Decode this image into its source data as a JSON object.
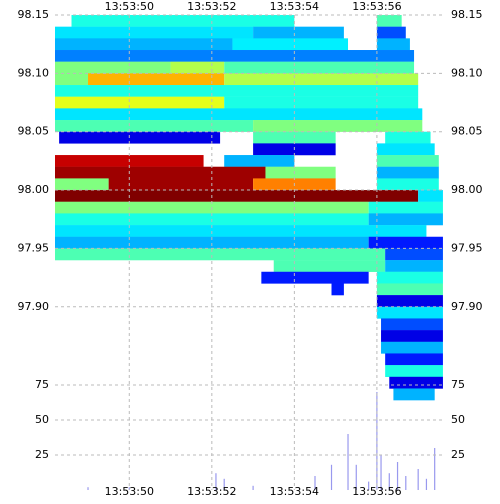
{
  "chart_data": {
    "type": "heatmap",
    "xlim": [
      48.2,
      57.65
    ],
    "xticks": [
      {
        "value": 50,
        "label": "13:53:50"
      },
      {
        "value": 52,
        "label": "13:53:52"
      },
      {
        "value": 54,
        "label": "13:53:54"
      },
      {
        "value": 56,
        "label": "13:53:56"
      }
    ],
    "ylim": [
      97.743,
      98.15
    ],
    "yticks": [
      98.15,
      {
        "value": 98.1,
        "label": "98.10"
      },
      98.05,
      {
        "value": 98,
        "label": "98.00"
      },
      97.95,
      {
        "value": 97.9,
        "label": "97.90"
      }
    ],
    "grid": true,
    "cells": [
      [
        48.6,
        54.0,
        98.15,
        0.4
      ],
      [
        56.0,
        56.6,
        98.15,
        0.45
      ],
      [
        48.2,
        53.0,
        98.14,
        0.35
      ],
      [
        53.0,
        55.2,
        98.14,
        0.3
      ],
      [
        56.0,
        56.7,
        98.14,
        0.2
      ],
      [
        48.2,
        52.5,
        98.13,
        0.3
      ],
      [
        52.5,
        55.3,
        98.13,
        0.36
      ],
      [
        56.0,
        56.8,
        98.13,
        0.3
      ],
      [
        48.2,
        56.9,
        98.12,
        0.25
      ],
      [
        48.2,
        51.0,
        98.11,
        0.5
      ],
      [
        51.0,
        52.3,
        98.11,
        0.55
      ],
      [
        52.3,
        56.9,
        98.11,
        0.45
      ],
      [
        48.2,
        49.0,
        98.1,
        0.5
      ],
      [
        49.0,
        52.3,
        98.1,
        0.7
      ],
      [
        52.3,
        57.0,
        98.1,
        0.55
      ],
      [
        48.2,
        57.0,
        98.09,
        0.4
      ],
      [
        48.2,
        52.3,
        98.08,
        0.6
      ],
      [
        52.3,
        57.0,
        98.08,
        0.4
      ],
      [
        48.2,
        57.1,
        98.07,
        0.35
      ],
      [
        48.2,
        53.0,
        98.06,
        0.45
      ],
      [
        53.0,
        57.1,
        98.06,
        0.5
      ],
      [
        48.3,
        52.2,
        98.05,
        0.1
      ],
      [
        53.0,
        55.0,
        98.05,
        0.45
      ],
      [
        56.2,
        57.3,
        98.05,
        0.4
      ],
      [
        53.0,
        55.0,
        98.04,
        0.1
      ],
      [
        56.0,
        57.4,
        98.04,
        0.35
      ],
      [
        48.2,
        51.8,
        98.03,
        0.93
      ],
      [
        52.3,
        54.0,
        98.03,
        0.3
      ],
      [
        56.0,
        57.5,
        98.03,
        0.45
      ],
      [
        48.2,
        53.3,
        98.02,
        0.97
      ],
      [
        53.3,
        55.0,
        98.02,
        0.5
      ],
      [
        56.0,
        57.5,
        98.02,
        0.3
      ],
      [
        48.2,
        49.5,
        98.01,
        0.5
      ],
      [
        49.5,
        53.0,
        98.01,
        0.97
      ],
      [
        53.0,
        55.0,
        98.01,
        0.75
      ],
      [
        56.0,
        57.5,
        98.01,
        0.4
      ],
      [
        48.2,
        57.0,
        98.0,
        1.0
      ],
      [
        57.0,
        57.6,
        98.0,
        0.35
      ],
      [
        48.2,
        55.8,
        97.99,
        0.5
      ],
      [
        55.8,
        57.6,
        97.99,
        0.4
      ],
      [
        48.2,
        55.8,
        97.98,
        0.4
      ],
      [
        55.8,
        57.6,
        97.98,
        0.3
      ],
      [
        48.2,
        57.2,
        97.97,
        0.35
      ],
      [
        48.2,
        55.8,
        97.96,
        0.3
      ],
      [
        55.8,
        57.6,
        97.96,
        0.15
      ],
      [
        48.2,
        56.2,
        97.95,
        0.45
      ],
      [
        56.2,
        57.6,
        97.95,
        0.2
      ],
      [
        53.5,
        56.2,
        97.94,
        0.45
      ],
      [
        56.2,
        57.6,
        97.94,
        0.3
      ],
      [
        53.2,
        55.8,
        97.93,
        0.15
      ],
      [
        56.0,
        57.6,
        97.93,
        0.4
      ],
      [
        54.9,
        55.2,
        97.92,
        0.15
      ],
      [
        56.0,
        57.6,
        97.92,
        0.45
      ],
      [
        56.0,
        57.6,
        97.91,
        0.1
      ],
      [
        56.0,
        57.6,
        97.9,
        0.35
      ],
      [
        56.1,
        57.6,
        97.89,
        0.2
      ],
      [
        56.1,
        57.6,
        97.88,
        0.1
      ],
      [
        56.1,
        57.6,
        97.87,
        0.3
      ],
      [
        56.2,
        57.6,
        97.86,
        0.15
      ],
      [
        56.2,
        57.6,
        97.85,
        0.4
      ],
      [
        56.3,
        57.6,
        97.84,
        0.1
      ],
      [
        56.4,
        57.4,
        97.83,
        0.3
      ]
    ],
    "volume": {
      "color": "#9999ee",
      "ylim": [
        0,
        80
      ],
      "yticks": [
        25,
        50,
        75
      ],
      "x": [
        49.0,
        50.0,
        52.1,
        52.3,
        53.0,
        54.5,
        54.9,
        55.3,
        55.5,
        55.8,
        56.0,
        56.1,
        56.3,
        56.5,
        56.7,
        57.0,
        57.2,
        57.4
      ],
      "values": [
        2,
        2,
        12,
        8,
        3,
        10,
        18,
        40,
        18,
        6,
        70,
        25,
        12,
        20,
        10,
        15,
        8,
        30
      ]
    }
  }
}
